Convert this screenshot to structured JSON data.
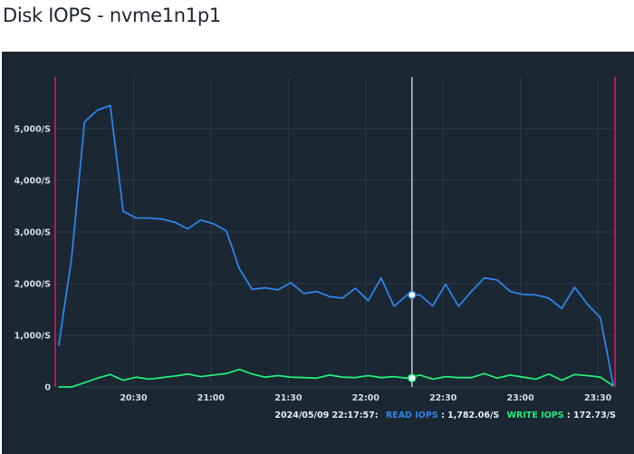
{
  "page": {
    "title": "Disk IOPS - nvme1n1p1"
  },
  "colors": {
    "background": "#1b2733",
    "grid": "#2e3b48",
    "read": "#2e83e6",
    "write": "#20e878",
    "cursor": "#e8eef4",
    "boundary": "#b01c58",
    "text": "#d4dbe3"
  },
  "readout": {
    "timestamp": "2024/05/09 22:17:57:",
    "read_label": "READ IOPS",
    "read_value": ": 1,782.06/S",
    "write_label": "WRITE IOPS",
    "write_value": ": 172.73/S"
  },
  "chart_data": {
    "type": "line",
    "title": "Disk IOPS - nvme1n1p1",
    "x_ticks": [
      "20:30",
      "21:00",
      "21:30",
      "22:00",
      "22:30",
      "23:00",
      "23:30"
    ],
    "y_ticks": [
      "0",
      "1,000/S",
      "2,000/S",
      "3,000/S",
      "4,000/S",
      "5,000/S"
    ],
    "xlim": [
      "20:00",
      "23:37"
    ],
    "ylim": [
      0,
      6000
    ],
    "grid": true,
    "legend": "none",
    "cursor_time": "22:17:57",
    "x": [
      "20:01",
      "20:06",
      "20:11",
      "20:16",
      "20:21",
      "20:26",
      "20:31",
      "20:36",
      "20:41",
      "20:46",
      "20:51",
      "20:56",
      "21:01",
      "21:06",
      "21:11",
      "21:16",
      "21:21",
      "21:26",
      "21:31",
      "21:36",
      "21:41",
      "21:46",
      "21:51",
      "21:56",
      "22:01",
      "22:06",
      "22:11",
      "22:16",
      "22:21",
      "22:26",
      "22:31",
      "22:36",
      "22:41",
      "22:46",
      "22:51",
      "22:56",
      "23:01",
      "23:06",
      "23:11",
      "23:16",
      "23:21",
      "23:26",
      "23:31",
      "23:36"
    ],
    "series": [
      {
        "name": "READ IOPS",
        "color": "#2e83e6",
        "values": [
          800,
          2500,
          5130,
          5360,
          5450,
          3400,
          3270,
          3270,
          3250,
          3190,
          3060,
          3230,
          3160,
          3020,
          2290,
          1890,
          1920,
          1880,
          2020,
          1810,
          1850,
          1750,
          1720,
          1910,
          1670,
          2110,
          1560,
          1780,
          1780,
          1570,
          1990,
          1560,
          1850,
          2110,
          2070,
          1850,
          1790,
          1780,
          1720,
          1520,
          1930,
          1600,
          1340,
          30
        ]
      },
      {
        "name": "WRITE IOPS",
        "color": "#20e878",
        "values": [
          0,
          0,
          80,
          170,
          240,
          130,
          190,
          150,
          180,
          210,
          250,
          200,
          230,
          260,
          340,
          250,
          190,
          220,
          190,
          180,
          170,
          230,
          190,
          180,
          220,
          180,
          200,
          170,
          230,
          150,
          200,
          180,
          180,
          260,
          170,
          230,
          190,
          150,
          250,
          130,
          240,
          220,
          190,
          20
        ]
      }
    ]
  }
}
